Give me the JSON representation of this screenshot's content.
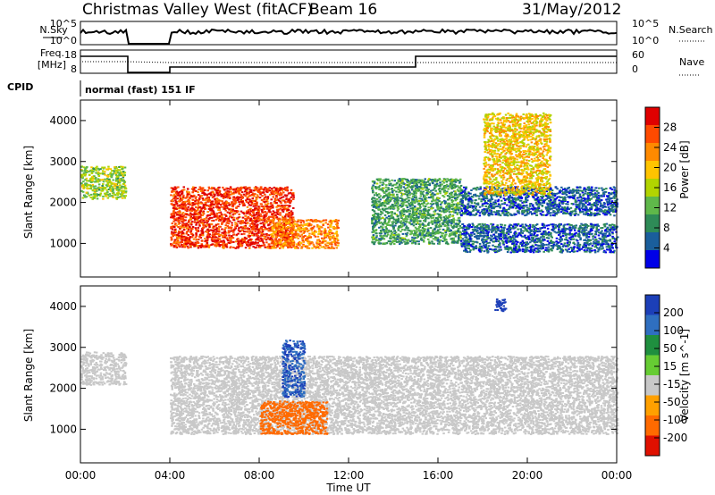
{
  "header": {
    "title": "Christmas Valley West (fitACF)",
    "beam": "Beam 16",
    "date": "31/May/2012"
  },
  "status_panel": {
    "nsky_label": "N.Sky",
    "nsky_ticks": [
      "10^5",
      "10^0"
    ],
    "nsearch_label": "N.Search",
    "nsearch_ticks": [
      "10^5",
      "10^0"
    ],
    "freq_label_1": "Freq.",
    "freq_label_2": "[MHz]",
    "freq_ticks": [
      "18",
      "8"
    ],
    "nave_label": "Nave",
    "nave_ticks": [
      "60",
      "0"
    ],
    "cpid_label": "CPID",
    "cpid_text": "normal (fast) 151 IF"
  },
  "chart_data": [
    {
      "type": "heatmap",
      "panel": "power",
      "ylabel": "Slant Range [km]",
      "y_ticks": [
        "4000",
        "3000",
        "2000",
        "1000"
      ],
      "ylim": [
        180,
        4500
      ],
      "colorbar": {
        "label": "Power [dB]",
        "ticks": [
          "28",
          "24",
          "20",
          "16",
          "12",
          "8",
          "4"
        ],
        "colors": [
          "#e00000",
          "#ff4a00",
          "#ff8a00",
          "#ffc400",
          "#b2d400",
          "#5fb84a",
          "#2e8b57",
          "#1a5e9c",
          "#0000e8"
        ]
      },
      "features": [
        {
          "x_hours": [
            0.0,
            2.0
          ],
          "range_km": [
            2100,
            2900
          ],
          "level_db": 16
        },
        {
          "x_hours": [
            4.0,
            9.5
          ],
          "range_km": [
            900,
            2400
          ],
          "level_db": 28
        },
        {
          "x_hours": [
            8.5,
            11.5
          ],
          "range_km": [
            900,
            1600
          ],
          "level_db": 24
        },
        {
          "x_hours": [
            13.0,
            17.0
          ],
          "range_km": [
            1000,
            2600
          ],
          "level_db": 12
        },
        {
          "x_hours": [
            17.0,
            24.0
          ],
          "range_km": [
            800,
            1500
          ],
          "level_db": 8
        },
        {
          "x_hours": [
            17.0,
            24.0
          ],
          "range_km": [
            1700,
            2400
          ],
          "level_db": 8
        },
        {
          "x_hours": [
            18.0,
            21.0
          ],
          "range_km": [
            2200,
            4200
          ],
          "level_db": 20
        }
      ]
    },
    {
      "type": "heatmap",
      "panel": "velocity",
      "xlabel": "Time UT",
      "ylabel": "Slant Range [km]",
      "x_ticks": [
        "00:00",
        "04:00",
        "08:00",
        "12:00",
        "16:00",
        "20:00",
        "00:00"
      ],
      "y_ticks": [
        "4000",
        "3000",
        "2000",
        "1000"
      ],
      "xlim_hours": [
        0,
        24
      ],
      "ylim": [
        180,
        4500
      ],
      "colorbar": {
        "label": "Velocity [m s^-1]",
        "ticks": [
          "200",
          "100",
          "50",
          "15",
          "-15",
          "-50",
          "-100",
          "-200"
        ],
        "colors": [
          "#1c3fb8",
          "#2f6fc0",
          "#1f8f3f",
          "#66cc33",
          "#c8c8c8",
          "#ffa000",
          "#ff6a00",
          "#e01000"
        ]
      },
      "features": [
        {
          "x_hours": [
            0.0,
            2.0
          ],
          "range_km": [
            2100,
            2900
          ],
          "velocity": 0
        },
        {
          "x_hours": [
            4.0,
            24.0
          ],
          "range_km": [
            900,
            2800
          ],
          "velocity": 0
        },
        {
          "x_hours": [
            8.0,
            11.0
          ],
          "range_km": [
            900,
            1700
          ],
          "velocity": -80
        },
        {
          "x_hours": [
            9.0,
            10.0
          ],
          "range_km": [
            1800,
            3200
          ],
          "velocity": 150
        },
        {
          "x_hours": [
            18.5,
            19.0
          ],
          "range_km": [
            3900,
            4200
          ],
          "velocity": 200
        }
      ]
    }
  ],
  "time_ticks": [
    "00:00",
    "04:00",
    "08:00",
    "12:00",
    "16:00",
    "20:00",
    "00:00"
  ]
}
